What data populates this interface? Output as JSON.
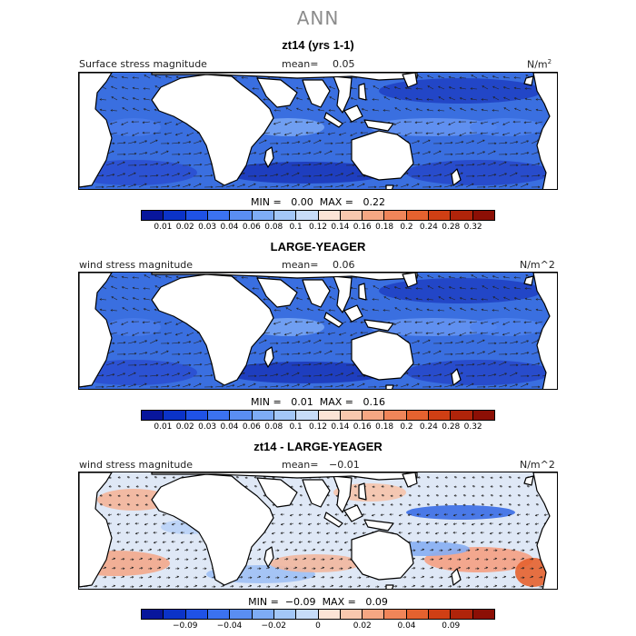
{
  "figure": {
    "title": "ANN"
  },
  "panels": [
    {
      "title": "zt14 (yrs 1-1)",
      "variable": "Surface stress magnitude",
      "mean_label": "mean=",
      "mean_value": "0.05",
      "units": "N/m",
      "units_sup": "2",
      "min_label": "MIN =",
      "min_value": "0.00",
      "max_label": "MAX =",
      "max_value": "0.22",
      "scheme": "abs"
    },
    {
      "title": "LARGE-YEAGER",
      "variable": "wind stress magnitude",
      "mean_label": "mean=",
      "mean_value": "0.06",
      "units": "N/m^2",
      "units_sup": "",
      "min_label": "MIN =",
      "min_value": "0.01",
      "max_label": "MAX =",
      "max_value": "0.16",
      "scheme": "abs"
    },
    {
      "title": "zt14 - LARGE-YEAGER",
      "variable": "wind stress magnitude",
      "mean_label": "mean=",
      "mean_value": "−0.01",
      "units": "N/m^2",
      "units_sup": "",
      "min_label": "MIN =",
      "min_value": "−0.09",
      "max_label": "MAX =",
      "max_value": "0.09",
      "scheme": "diff"
    }
  ],
  "colorbar_abs": {
    "colors": [
      "#08169c",
      "#0b33c8",
      "#1f52e6",
      "#3b72f0",
      "#5a8ef2",
      "#7eacf5",
      "#a3c7f7",
      "#c7dcf8",
      "#fbe4d6",
      "#f8c8ae",
      "#f5a783",
      "#f08559",
      "#e5622f",
      "#d03f14",
      "#b0240a",
      "#8c0f05"
    ],
    "labels": [
      "0.01",
      "0.02",
      "0.03",
      "0.04",
      "0.06",
      "0.08",
      "0.1",
      "0.12",
      "0.14",
      "0.16",
      "0.18",
      "0.2",
      "0.24",
      "0.28",
      "0.32"
    ]
  },
  "colorbar_diff": {
    "colors": [
      "#08169c",
      "#0b33c8",
      "#1f52e6",
      "#3b72f0",
      "#5a8ef2",
      "#7eacf5",
      "#a3c7f7",
      "#c7dcf8",
      "#fbe4d6",
      "#f8c8ae",
      "#f5a783",
      "#f08559",
      "#e5622f",
      "#d03f14",
      "#b0240a",
      "#8c0f05"
    ],
    "labels": [
      {
        "text": "−0.09",
        "pos": 2
      },
      {
        "text": "−0.04",
        "pos": 4
      },
      {
        "text": "−0.02",
        "pos": 6
      },
      {
        "text": "0",
        "pos": 8
      },
      {
        "text": "0.02",
        "pos": 10
      },
      {
        "text": "0.04",
        "pos": 12
      },
      {
        "text": "0.09",
        "pos": 14
      }
    ]
  }
}
